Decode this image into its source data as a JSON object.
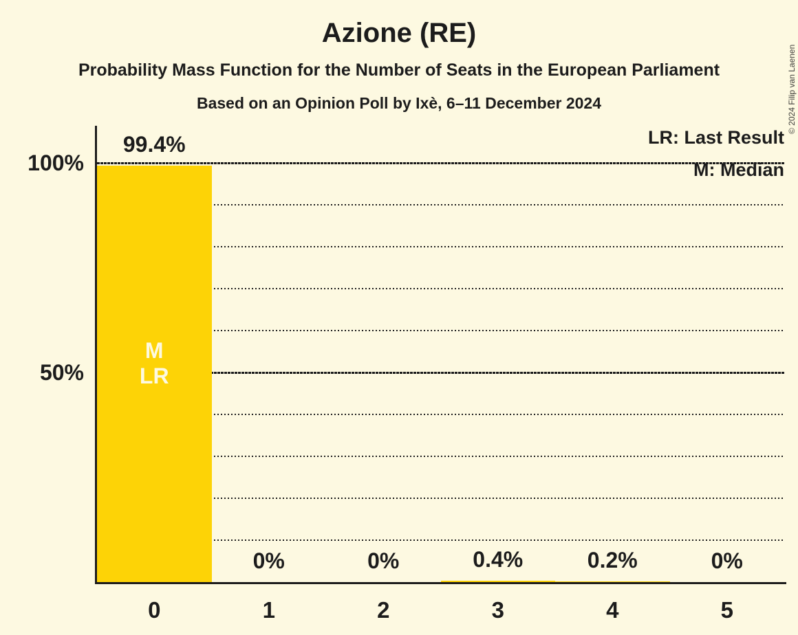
{
  "title": "Azione (RE)",
  "subtitle": "Probability Mass Function for the Number of Seats in the European Parliament",
  "source": "Based on an Opinion Poll by Ixè, 6–11 December 2024",
  "copyright": "© 2024 Filip van Laenen",
  "legend": {
    "last_result": "LR: Last Result",
    "median": "M: Median"
  },
  "colors": {
    "background": "#FDF9E1",
    "bar": "#FDD306",
    "ink": "#1C1C1C",
    "bar_inner_text": "#FDF9E1"
  },
  "chart_data": {
    "type": "bar",
    "title": "Azione (RE)",
    "subtitle": "Probability Mass Function for the Number of Seats in the European Parliament",
    "source_line": "Based on an Opinion Poll by Ixè, 6–11 December 2024",
    "xlabel": "",
    "ylabel": "",
    "categories": [
      "0",
      "1",
      "2",
      "3",
      "4",
      "5"
    ],
    "values": [
      99.4,
      0,
      0,
      0.4,
      0.2,
      0
    ],
    "value_labels": [
      "99.4%",
      "0%",
      "0%",
      "0.4%",
      "0.2%",
      "0%"
    ],
    "bar_inner_labels": [
      [
        "M",
        "LR"
      ],
      [],
      [],
      [],
      [],
      []
    ],
    "ylim": [
      0,
      100
    ],
    "grid_step_percent": 10,
    "grid_style": "dotted-horizontal",
    "y_ticks": [
      {
        "value": 100,
        "label": "100%"
      },
      {
        "value": 50,
        "label": "50%"
      }
    ],
    "legend_position": "top-right",
    "annotations": {
      "M": "Median",
      "LR": "Last Result"
    }
  }
}
